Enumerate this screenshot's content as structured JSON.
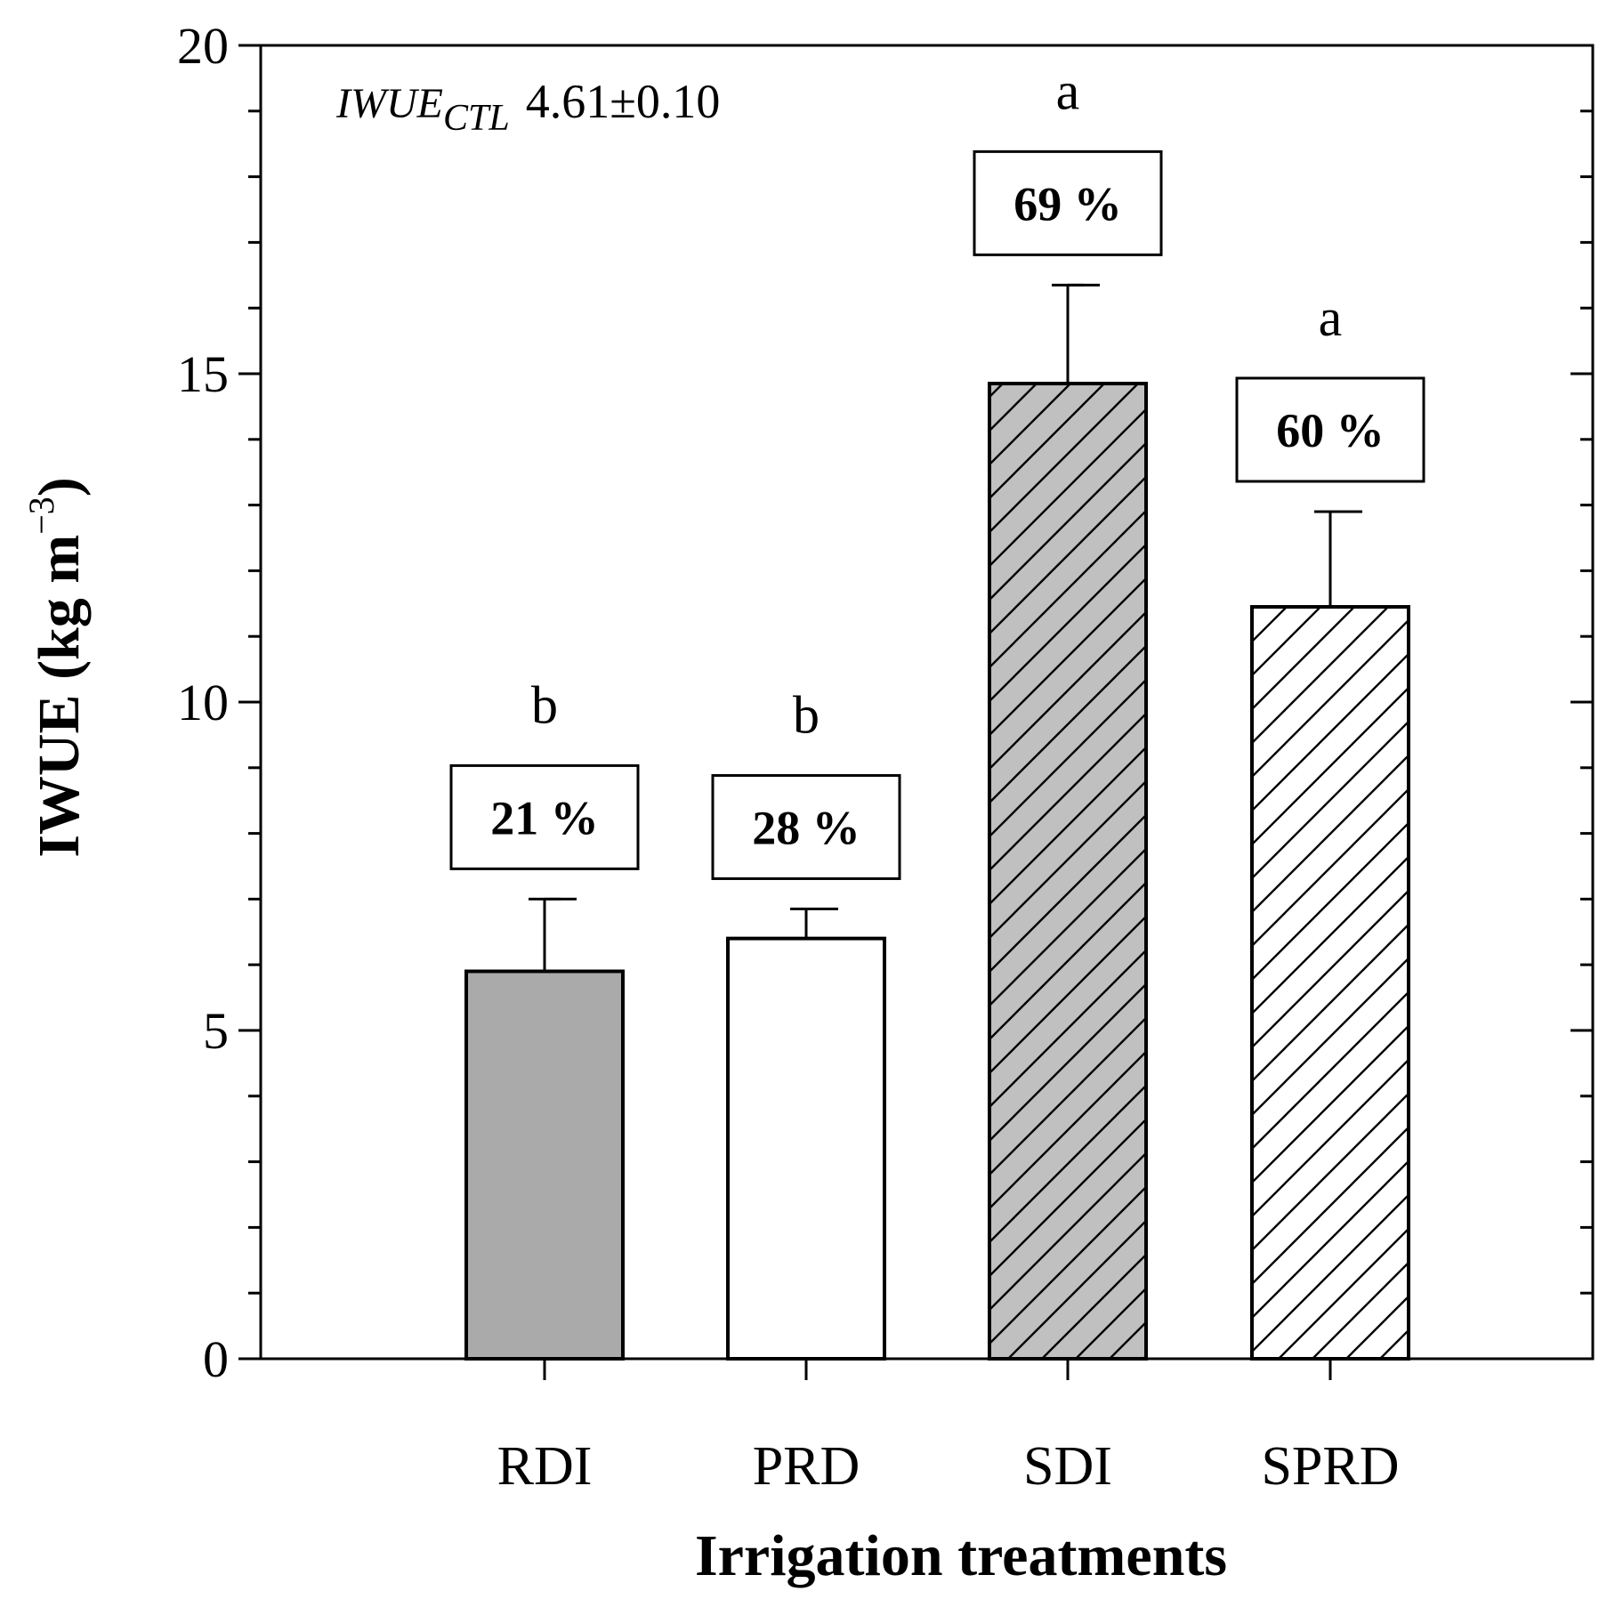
{
  "chart_data": {
    "type": "bar",
    "title": "",
    "xlabel": "Irrigation treatments",
    "ylabel": {
      "main": "IWUE (kg m",
      "sup": "−3",
      "close": ")"
    },
    "ylim": [
      0,
      20
    ],
    "yticks": [
      "0",
      "5",
      "10",
      "15",
      "20"
    ],
    "y_minor_step": 1,
    "categories": [
      "RDI",
      "PRD",
      "SDI",
      "SPRD"
    ],
    "values": [
      5.9,
      6.4,
      14.85,
      11.45
    ],
    "errors": [
      1.1,
      0.45,
      1.5,
      1.45
    ],
    "significance": [
      "b",
      "b",
      "a",
      "a"
    ],
    "percent_labels": [
      "21 %",
      "28 %",
      "69 %",
      "60 %"
    ],
    "bar_styles": [
      {
        "fill": "#aaaaaa",
        "hatch": false
      },
      {
        "fill": "#ffffff",
        "hatch": false
      },
      {
        "fill": "#c0c0c0",
        "hatch": true
      },
      {
        "fill": "#ffffff",
        "hatch": true
      }
    ],
    "annotation": {
      "main": "IWUE",
      "sub": "CTL",
      "value": "4.61±0.10"
    },
    "grid": false
  }
}
